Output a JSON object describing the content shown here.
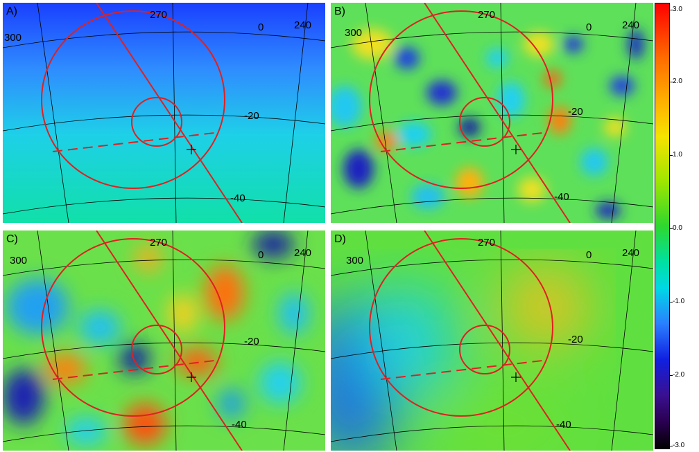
{
  "panels": [
    {
      "id": "a",
      "label": "A)",
      "lon_labels": [
        "300",
        "270",
        "0",
        "240"
      ],
      "lat_labels": [
        "-20",
        "-40"
      ]
    },
    {
      "id": "b",
      "label": "B)",
      "lon_labels": [
        "300",
        "270",
        "0",
        "240"
      ],
      "lat_labels": [
        "-20",
        "-40"
      ]
    },
    {
      "id": "c",
      "label": "C)",
      "lon_labels": [
        "300",
        "270",
        "0",
        "240"
      ],
      "lat_labels": [
        "-20",
        "-40"
      ]
    },
    {
      "id": "d",
      "label": "D)",
      "lon_labels": [
        "300",
        "270",
        "0",
        "240"
      ],
      "lat_labels": [
        "-20",
        "-40"
      ]
    }
  ],
  "colorbar": {
    "ticks": [
      "3.0",
      "2.0",
      "1.0",
      "0.0",
      "-1.0",
      "-2.0",
      "-3.0"
    ]
  },
  "colors": {
    "overlay": "#e02020",
    "grid": "#000000"
  }
}
